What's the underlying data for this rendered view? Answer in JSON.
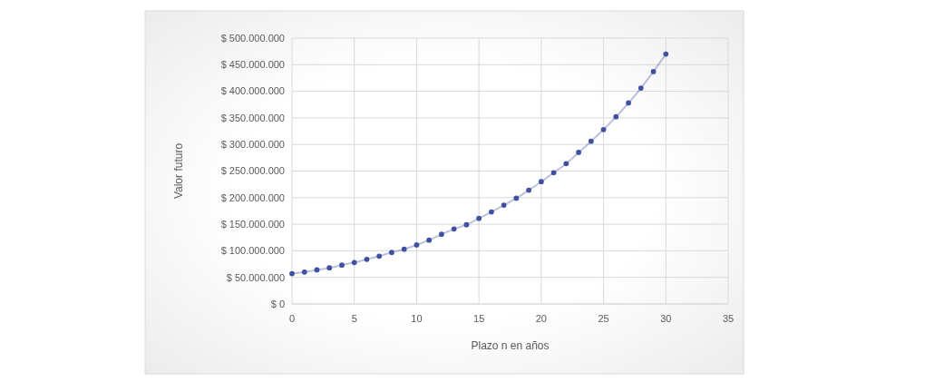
{
  "chart_data": {
    "type": "line",
    "xlabel": "Plazo n en años",
    "ylabel": "Valor futuro",
    "x": [
      0,
      1,
      2,
      3,
      4,
      5,
      6,
      7,
      8,
      9,
      10,
      11,
      12,
      13,
      14,
      15,
      16,
      17,
      18,
      19,
      20,
      21,
      22,
      23,
      24,
      25,
      26,
      27,
      28,
      29,
      30
    ],
    "series": [
      {
        "color": "#3f51a0",
        "values": [
          57000000,
          60000000,
          64000000,
          68000000,
          73000000,
          78000000,
          84000000,
          90000000,
          97000000,
          103000000,
          111000000,
          120000000,
          131000000,
          141000000,
          149000000,
          161000000,
          173000000,
          186000000,
          199000000,
          214000000,
          230000000,
          247000000,
          264000000,
          285000000,
          306000000,
          328000000,
          352000000,
          378000000,
          406000000,
          437000000,
          470000000
        ]
      }
    ],
    "xlim": [
      0,
      35
    ],
    "xticks": [
      0,
      5,
      10,
      15,
      20,
      25,
      30,
      35
    ],
    "ylim": [
      0,
      500000000
    ],
    "yticks": [
      {
        "value": 0,
        "label": "$ 0"
      },
      {
        "value": 50000000,
        "label": "$ 50.000.000"
      },
      {
        "value": 100000000,
        "label": "$ 100.000.000"
      },
      {
        "value": 150000000,
        "label": "$ 150.000.000"
      },
      {
        "value": 200000000,
        "label": "$ 200.000.000"
      },
      {
        "value": 250000000,
        "label": "$ 250.000.000"
      },
      {
        "value": 300000000,
        "label": "$ 300.000.000"
      },
      {
        "value": 350000000,
        "label": "$ 350.000.000"
      },
      {
        "value": 400000000,
        "label": "$ 400.000.000"
      },
      {
        "value": 450000000,
        "label": "$ 450.000.000"
      },
      {
        "value": 500000000,
        "label": "$ 500.000.000"
      }
    ],
    "grid": true,
    "marker": "circle"
  }
}
